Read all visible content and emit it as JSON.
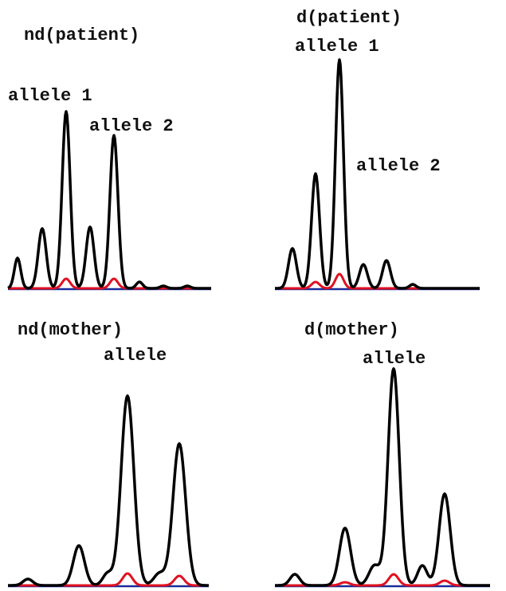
{
  "panels": [
    {
      "title": "nd(patient)",
      "labels": [
        "allele 1",
        "allele 2"
      ]
    },
    {
      "title": "d(patient)",
      "labels": [
        "allele 1",
        "allele 2"
      ]
    },
    {
      "title": "nd(mother)",
      "labels": [
        "allele"
      ]
    },
    {
      "title": "d(mother)",
      "labels": [
        "allele"
      ]
    }
  ]
}
